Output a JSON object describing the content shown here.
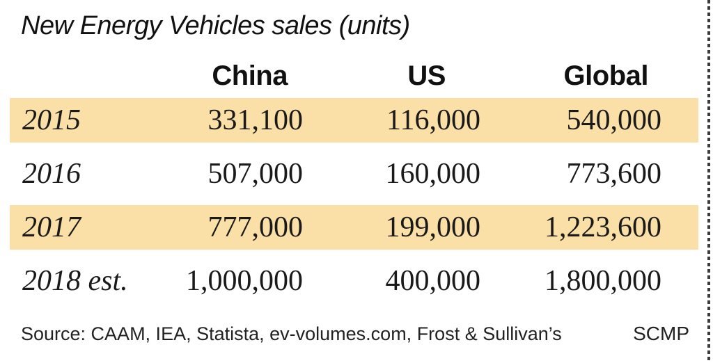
{
  "title": "New Energy Vehicles sales (units)",
  "table": {
    "columns": [
      "China",
      "US",
      "Global"
    ],
    "rows": [
      {
        "year": "2015",
        "china": "331,100",
        "us": "116,000",
        "global": "540,000",
        "highlighted": true
      },
      {
        "year": "2016",
        "china": "507,000",
        "us": "160,000",
        "global": "773,600",
        "highlighted": false
      },
      {
        "year": "2017",
        "china": "777,000",
        "us": "199,000",
        "global": "1,223,600",
        "highlighted": true
      },
      {
        "year": "2018 est.",
        "china": "1,000,000",
        "us": "400,000",
        "global": "1,800,000",
        "highlighted": false
      }
    ]
  },
  "source": {
    "label": "Source: CAAM, IEA, Statista, ev-volumes.com, Frost & Sullivan’s",
    "credit": "SCMP"
  },
  "colors": {
    "highlight": "#fadfa6",
    "text": "#1a1a1a",
    "tear_edge": "#3c3c3c",
    "background": "#ffffff"
  },
  "chart_data": {
    "type": "table",
    "title": "New Energy Vehicles sales (units)",
    "categories": [
      "2015",
      "2016",
      "2017",
      "2018 est."
    ],
    "series": [
      {
        "name": "China",
        "values": [
          331100,
          507000,
          777000,
          1000000
        ]
      },
      {
        "name": "US",
        "values": [
          116000,
          160000,
          199000,
          400000
        ]
      },
      {
        "name": "Global",
        "values": [
          540000,
          773600,
          1223600,
          1800000
        ]
      }
    ],
    "highlighted_rows": [
      "2015",
      "2017"
    ],
    "source": "CAAM, IEA, Statista, ev-volumes.com, Frost & Sullivan's",
    "credit": "SCMP"
  }
}
